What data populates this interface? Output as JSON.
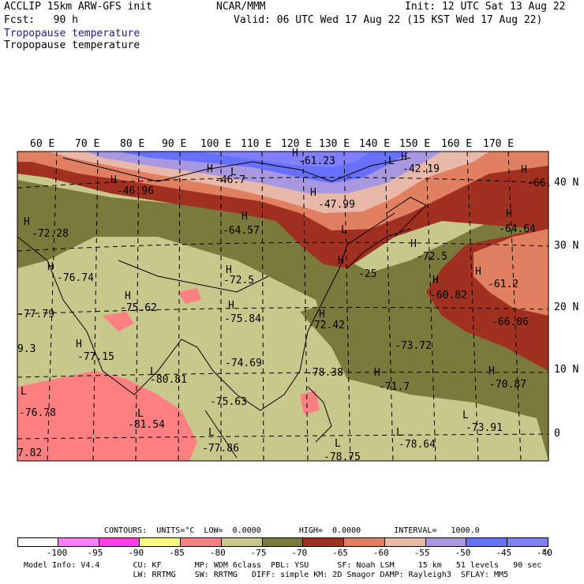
{
  "header": {
    "model": "ACCLIP 15km ARW-GFS init",
    "forecast": "Fcst:   90 h",
    "org": "NCAR/MMM",
    "init": "Init: 12 UTC Sat 13 Aug 22",
    "valid": "Valid: 06 UTC Wed 17 Aug 22 (15 KST Wed 17 Aug 22)",
    "field_line1": "Tropopause temperature",
    "field_line2": "Tropopause temperature"
  },
  "map": {
    "lon_labels": [
      "60 E",
      "70 E",
      "80 E",
      "90 E",
      "100 E",
      "110 E",
      "120 E",
      "130 E",
      "140 E",
      "150 E",
      "160 E",
      "170 E"
    ],
    "lat_labels": [
      "40 N",
      "30 N",
      "20 N",
      "10 N",
      "0"
    ],
    "annotations": [
      {
        "text": "-61.23"
      },
      {
        "text": "-42.19"
      },
      {
        "text": "-46.96"
      },
      {
        "text": "-46.7"
      },
      {
        "text": "-47.99"
      },
      {
        "text": "-66."
      },
      {
        "text": "-72.28"
      },
      {
        "text": "-64.57"
      },
      {
        "text": "-64.64"
      },
      {
        "text": "-72.5"
      },
      {
        "text": "-76.74"
      },
      {
        "text": "-72.5"
      },
      {
        "text": "-25"
      },
      {
        "text": "-61.2"
      },
      {
        "text": "-60.82"
      },
      {
        "text": "-75.62"
      },
      {
        "text": "-77.79"
      },
      {
        "text": "-75.84"
      },
      {
        "text": "-72.42"
      },
      {
        "text": "-66.06"
      },
      {
        "text": "-73.72"
      },
      {
        "text": "9.3"
      },
      {
        "text": "-77.15"
      },
      {
        "text": "-74.69"
      },
      {
        "text": "-78.38"
      },
      {
        "text": "-80.81"
      },
      {
        "text": "-71.7"
      },
      {
        "text": "-70.87"
      },
      {
        "text": "-76.78"
      },
      {
        "text": "-75.63"
      },
      {
        "text": "-81.54"
      },
      {
        "text": "-73.91"
      },
      {
        "text": "-77.86"
      },
      {
        "text": "-78.64"
      },
      {
        "text": "-78.75"
      },
      {
        "text": "7.82"
      }
    ],
    "h_markers": [
      "H",
      "H",
      "H",
      "H",
      "H",
      "H",
      "H",
      "H",
      "H",
      "H",
      "H",
      "H",
      "H",
      "H",
      "H",
      "H",
      "H",
      "H",
      "H",
      "H",
      "H"
    ],
    "l_markers": [
      "L",
      "L",
      "L",
      "L",
      "L",
      "L",
      "L",
      "L",
      "L",
      "L"
    ]
  },
  "contours": {
    "text": "CONTOURS:  UNITS=°C  LOW=  0.0000        HIGH=  0.0000       INTERVAL=   1000.0"
  },
  "colorbar": {
    "colors": [
      "#ffffff",
      "#ff80ff",
      "#ff40e0",
      "#ffff80",
      "#ff8080",
      "#c8c88c",
      "#7a7a3c",
      "#a03020",
      "#e08060",
      "#e8b8a8",
      "#a898e0",
      "#6870ff",
      "#8080ff"
    ],
    "labels": [
      "-100",
      "-95",
      "-90",
      "-85",
      "-80",
      "-75",
      "-70",
      "-65",
      "-60",
      "-55",
      "-50",
      "-45",
      "-40"
    ],
    "unit": "°C"
  },
  "footer": {
    "line1": "Model Info: V4.4       CU: KF       MP: WDM 6class  PBL: YSU      SF: Noah LSM     15 km   51 levels   90 sec",
    "line2": "                       LW: RRTMG    SW: RRTMG   DIFF: simple KM: 2D Smagor DAMP: Rayleigh3  SFLAY: MM5"
  }
}
